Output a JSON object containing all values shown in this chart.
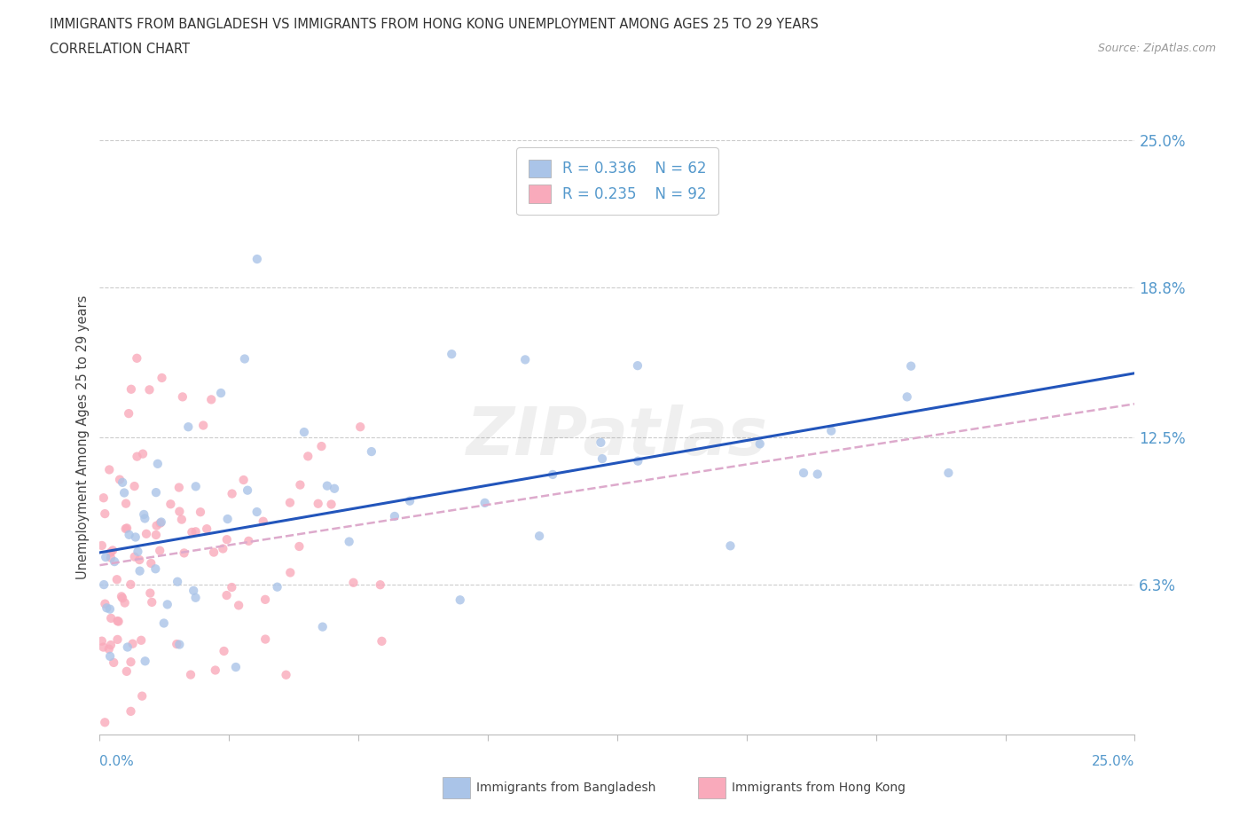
{
  "title_line1": "IMMIGRANTS FROM BANGLADESH VS IMMIGRANTS FROM HONG KONG UNEMPLOYMENT AMONG AGES 25 TO 29 YEARS",
  "title_line2": "CORRELATION CHART",
  "source_text": "Source: ZipAtlas.com",
  "ylabel": "Unemployment Among Ages 25 to 29 years",
  "xlim": [
    0.0,
    25.0
  ],
  "ylim": [
    0.0,
    25.0
  ],
  "yticks": [
    0.0,
    6.3,
    12.5,
    18.8,
    25.0
  ],
  "ytick_labels": [
    "",
    "6.3%",
    "12.5%",
    "18.8%",
    "25.0%"
  ],
  "watermark": "ZIPatlas",
  "legend_r1": "R = 0.336",
  "legend_n1": "N = 62",
  "legend_r2": "R = 0.235",
  "legend_n2": "N = 92",
  "color_bangladesh": "#AAC4E8",
  "color_hongkong": "#F9AABB",
  "color_trendline_bangladesh": "#2255BB",
  "color_trendline_hongkong": "#DDAACC",
  "color_axis_labels": "#5599CC",
  "color_legend_text": "#5599CC",
  "xtick_label_left": "0.0%",
  "xtick_label_right": "25.0%",
  "legend_label1": "Immigrants from Bangladesh",
  "legend_label2": "Immigrants from Hong Kong"
}
